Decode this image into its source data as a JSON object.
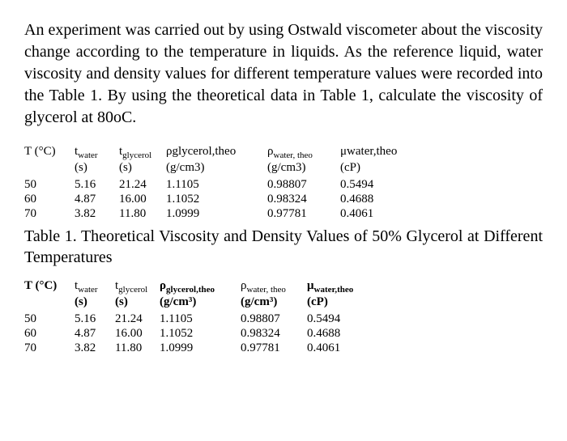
{
  "paragraph": "An experiment was carried out by using Ostwald viscometer about the viscosity change according to the temperature in liquids. As the reference liquid, water viscosity and density values for different temperature values were recorded into the Table 1. By using the theoretical data in Table 1, calculate the viscosity of glycerol at 80oC.",
  "table1": {
    "headers": {
      "temp": "T (°C)",
      "twater": "twater",
      "tglycerol": "tglycerol",
      "pglycerol": "ρglycerol,theo",
      "pwater": "ρwater, theo",
      "uwater": "μwater,theo"
    },
    "units": {
      "temp": "",
      "twater": "(s)",
      "tglycerol": "(s)",
      "pglycerol": "(g/cm3)",
      "pwater": "(g/cm3)",
      "uwater": "(cP)"
    },
    "rows": [
      {
        "temp": "50",
        "twater": "5.16",
        "tglycerol": "21.24",
        "pglycerol": "1.1105",
        "pwater": "0.98807",
        "uwater": "0.5494"
      },
      {
        "temp": "60",
        "twater": "4.87",
        "tglycerol": "16.00",
        "pglycerol": "1.1052",
        "pwater": "0.98324",
        "uwater": "0.4688"
      },
      {
        "temp": "70",
        "twater": "3.82",
        "tglycerol": "11.80",
        "pglycerol": "1.0999",
        "pwater": "0.97781",
        "uwater": "0.4061"
      }
    ]
  },
  "caption": "Table 1. Theoretical Viscosity and Density Values of 50% Glycerol at Different Temperatures",
  "table2": {
    "headers": {
      "temp": "T (°C)",
      "twater_t": "t",
      "twater_sub": "water",
      "tgly_t": "t",
      "tgly_sub": "glycerol",
      "pgly_p": "ρ",
      "pgly_sub": "glycerol,theo",
      "pwater_p": "ρ",
      "pwater_sub": "water, theo",
      "uwater_u": "μ",
      "uwater_sub": "water,theo"
    },
    "units": {
      "temp": "",
      "twater": "(s)",
      "tglycerol": "(s)",
      "pglycerol": "(g/cm³)",
      "pwater": "(g/cm³)",
      "uwater": "(cP)"
    },
    "rows": [
      {
        "temp": "50",
        "twater": "5.16",
        "tglycerol": "21.24",
        "pglycerol": "1.1105",
        "pwater": "0.98807",
        "uwater": "0.5494"
      },
      {
        "temp": "60",
        "twater": "4.87",
        "tglycerol": "16.00",
        "pglycerol": "1.1052",
        "pwater": "0.98324",
        "uwater": "0.4688"
      },
      {
        "temp": "70",
        "twater": "3.82",
        "tglycerol": "11.80",
        "pglycerol": "1.0999",
        "pwater": "0.97781",
        "uwater": "0.4061"
      }
    ]
  },
  "styling": {
    "font_family": "Times New Roman",
    "body_font_size": 20,
    "table_font_size": 15,
    "text_color": "#000000",
    "background_color": "#ffffff"
  }
}
